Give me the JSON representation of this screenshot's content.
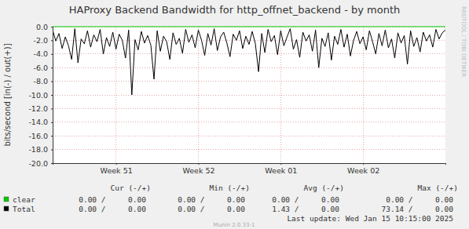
{
  "chart_data": {
    "type": "line",
    "title": "HAProxy Backend Bandwidth for http_offnet_backend - by month",
    "y_label": "bits/second [in(-) / out(+)]",
    "side_text": "RRDTOOL / TOBI OETIKER",
    "footer": "Last update: Wed Jan 15 10:15:00 2025",
    "version": "Munin 2.0.33-1",
    "grid": true,
    "legend": "bottom",
    "categories": [
      null,
      null,
      null,
      null,
      null,
      null,
      null,
      null,
      null,
      null,
      null,
      null,
      null,
      null,
      null,
      null,
      null,
      null,
      null,
      null,
      "Week 51",
      null,
      null,
      null,
      null,
      null,
      null,
      null,
      null,
      null,
      null,
      null,
      null,
      null,
      null,
      null,
      null,
      null,
      null,
      null,
      null,
      null,
      null,
      null,
      null,
      null,
      "Week 52",
      null,
      null,
      null,
      null,
      null,
      null,
      null,
      null,
      null,
      null,
      null,
      null,
      null,
      null,
      null,
      null,
      null,
      null,
      null,
      null,
      null,
      null,
      null,
      null,
      null,
      "Week 01",
      null,
      null,
      null,
      null,
      null,
      null,
      null,
      null,
      null,
      null,
      null,
      null,
      null,
      null,
      null,
      null,
      null,
      null,
      null,
      null,
      null,
      null,
      null,
      null,
      null,
      "Week 02",
      null,
      null,
      null,
      null,
      null,
      null,
      null,
      null,
      null,
      null,
      null,
      null,
      null,
      null,
      null,
      null,
      null,
      null,
      null,
      null,
      null,
      null,
      null,
      null,
      null,
      null
    ],
    "ylim": [
      -20,
      0
    ],
    "yticks": [
      {
        "value": -20,
        "label": "-20.0"
      },
      {
        "value": -18,
        "label": "-18.0"
      },
      {
        "value": -16,
        "label": "-16.0"
      },
      {
        "value": -14,
        "label": "-14.0"
      },
      {
        "value": -12,
        "label": "-12.0"
      },
      {
        "value": -10,
        "label": "-10.0"
      },
      {
        "value": -8,
        "label": "-8.0"
      },
      {
        "value": -6,
        "label": "-6.0"
      },
      {
        "value": -4,
        "label": "-4.0"
      },
      {
        "value": -2,
        "label": "-2.0"
      },
      {
        "value": 0,
        "label": "0.0"
      }
    ],
    "stats_columns": [
      "Cur (-/+)",
      "Min (-/+)",
      "Avg (-/+)",
      "Max (-/+)"
    ],
    "series": [
      {
        "name": "clear",
        "color": "#00cc00",
        "stats": [
          "0.00 /     0.00",
          "0.00 /     0.00",
          "0.00 /     0.00",
          "0.00 /     0.00"
        ],
        "values": [
          0,
          0,
          0,
          0,
          0,
          0,
          0,
          0,
          0,
          0,
          0,
          0,
          0,
          0,
          0,
          0,
          0,
          0,
          0,
          0,
          0,
          0,
          0,
          0,
          0,
          0,
          0,
          0,
          0,
          0,
          0,
          0,
          0,
          0,
          0,
          0,
          0,
          0,
          0,
          0,
          0,
          0,
          0,
          0,
          0,
          0,
          0,
          0,
          0,
          0,
          0,
          0,
          0,
          0,
          0,
          0,
          0,
          0,
          0,
          0,
          0,
          0,
          0,
          0,
          0,
          0,
          0,
          0,
          0,
          0,
          0,
          0,
          0,
          0,
          0,
          0,
          0,
          0,
          0,
          0,
          0,
          0,
          0,
          0,
          0,
          0,
          0,
          0,
          0,
          0,
          0,
          0,
          0,
          0,
          0,
          0,
          0,
          0,
          0,
          0,
          0,
          0,
          0,
          0,
          0,
          0,
          0,
          0,
          0,
          0,
          0,
          0,
          0,
          0,
          0,
          0,
          0,
          0,
          0,
          0,
          0,
          0,
          0,
          0,
          0
        ]
      },
      {
        "name": "Total",
        "color": "#000000",
        "stats": [
          "0.00 /     0.00",
          "0.00 /     0.00",
          "1.43 /     0.00",
          "73.14 /     0.00"
        ],
        "values": [
          -0.5,
          -2.1,
          -1.0,
          -3.2,
          -1.5,
          -2.8,
          -4.8,
          -0.3,
          -5.3,
          -1.8,
          -2.5,
          -0.6,
          -3.0,
          -1.2,
          -2.2,
          -0.4,
          -4.0,
          -1.6,
          -2.9,
          -0.8,
          -3.3,
          -1.1,
          -2.0,
          -4.6,
          -0.5,
          -10.0,
          -1.9,
          -3.4,
          -0.7,
          -2.4,
          -1.3,
          -2.7,
          -7.7,
          -0.6,
          -3.6,
          -1.4,
          -2.2,
          -4.8,
          -0.9,
          -2.6,
          -1.7,
          -3.9,
          -0.4,
          -2.3,
          -1.2,
          -3.1,
          -0.5,
          -2.0,
          -4.2,
          -1.0,
          -2.7,
          -0.3,
          -3.5,
          -1.5,
          -0.8,
          -2.4,
          -4.4,
          -1.1,
          -2.0,
          -0.6,
          -3.2,
          -1.4,
          -2.6,
          -0.7,
          -2.5,
          -6.6,
          -1.0,
          -3.8,
          -0.4,
          -2.2,
          -1.3,
          -4.1,
          -0.6,
          -2.8,
          -1.5,
          -0.3,
          -3.3,
          -1.9,
          -4.5,
          -0.8,
          -2.1,
          -1.2,
          -3.6,
          -0.5,
          -6.0,
          -1.7,
          -2.9,
          -0.9,
          -4.9,
          -1.4,
          -2.6,
          -0.4,
          -3.0,
          -1.1,
          -4.3,
          -2.0,
          -0.7,
          -2.5,
          -1.5,
          -3.4,
          -0.6,
          -2.2,
          -4.0,
          -1.0,
          -2.8,
          -0.5,
          -3.1,
          -1.8,
          -4.6,
          -0.9,
          -2.4,
          -1.3,
          -5.5,
          -0.6,
          -2.9,
          -1.6,
          -3.7,
          -0.8,
          -2.1,
          -1.2,
          -3.0,
          -0.4,
          -1.8,
          -0.9,
          -0.5
        ]
      }
    ]
  }
}
